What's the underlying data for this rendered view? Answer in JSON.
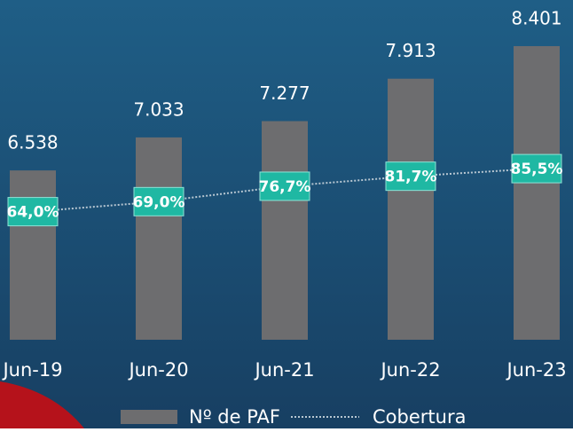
{
  "chart_data": {
    "type": "bar-line",
    "categories": [
      "Jun-19",
      "Jun-20",
      "Jun-21",
      "Jun-22",
      "Jun-23"
    ],
    "series": [
      {
        "name": "Nº de PAF",
        "type": "bar",
        "color": "#6d6d6f",
        "values": [
          6538,
          7033,
          7277,
          7913,
          8401
        ],
        "value_labels": [
          "6.538",
          "7.033",
          "7.277",
          "7.913",
          "8.401"
        ]
      },
      {
        "name": "Cobertura",
        "type": "line",
        "axis": "y2",
        "color": "#b8c7d2",
        "label_color": "#1fb8a3",
        "values": [
          64.0,
          69.0,
          76.7,
          81.7,
          85.5
        ],
        "value_labels": [
          "64,0%",
          "69,0%",
          "76,7%",
          "81,7%",
          "85,5%"
        ]
      }
    ],
    "ylim": [
      4000,
      8800
    ],
    "y2lim": [
      0,
      160
    ],
    "legend": "bottom"
  }
}
